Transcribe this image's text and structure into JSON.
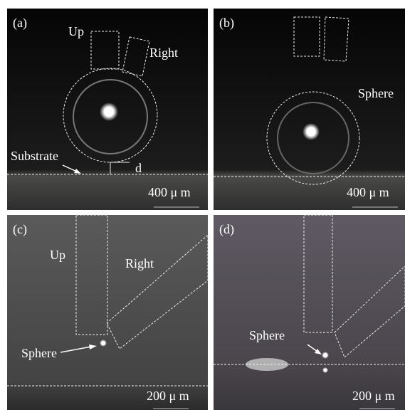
{
  "panels": [
    {
      "label": "(a)",
      "up": "Up",
      "right": "Right",
      "substrate": "Substrate",
      "gap": "d",
      "scale": "400 μ m"
    },
    {
      "label": "(b)",
      "sphere": "Sphere",
      "scale": "400 μ m"
    },
    {
      "label": "(c)",
      "up": "Up",
      "right": "Right",
      "sphere": "Sphere",
      "scale": "200 μ m"
    },
    {
      "label": "(d)",
      "sphere": "Sphere",
      "scale": "200 μ m"
    }
  ]
}
